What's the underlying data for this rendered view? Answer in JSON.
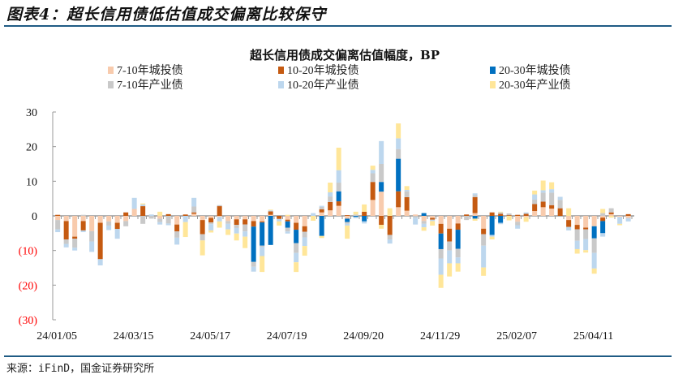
{
  "figure_title": "图表4：超长信用债低估值成交偏离比较保守",
  "source": "来源：iFinD，国金证券研究所",
  "chart_data": {
    "type": "bar",
    "stacked": true,
    "title": "超长信用债成交偏离估值幅度，BP",
    "xlabel": "",
    "ylabel": "",
    "ylim": [
      -30,
      30
    ],
    "yticks": [
      30,
      20,
      10,
      0,
      -10,
      -20,
      -30
    ],
    "ytick_labels": [
      "30",
      "20",
      "10",
      "0",
      "(10)",
      "(20)",
      "(30)"
    ],
    "negative_tick_color": "#ff0000",
    "grid": false,
    "legend_position": "top",
    "x_tick_labels": [
      {
        "index": 0,
        "label": "24/01/05"
      },
      {
        "index": 9,
        "label": "24/03/15"
      },
      {
        "index": 18,
        "label": "24/05/17"
      },
      {
        "index": 27,
        "label": "24/07/19"
      },
      {
        "index": 36,
        "label": "24/09/20"
      },
      {
        "index": 45,
        "label": "24/11/29"
      },
      {
        "index": 54,
        "label": "25/02/07"
      },
      {
        "index": 63,
        "label": "25/04/11"
      }
    ],
    "series": [
      {
        "name": "7-10年城投债",
        "color": "#f8cbad"
      },
      {
        "name": "10-20年城投债",
        "color": "#c55a11"
      },
      {
        "name": "20-30年城投债",
        "color": "#0070c0"
      },
      {
        "name": "7-10年产业债",
        "color": "#c9c9c9"
      },
      {
        "name": "10-20年产业债",
        "color": "#bdd7ee"
      },
      {
        "name": "20-30年产业债",
        "color": "#ffe699"
      }
    ],
    "values_by_week_note": "each row = one week, columns in series order",
    "values_by_week": [
      [
        -1.2,
        0.3,
        0,
        -2.7,
        -0.8,
        0
      ],
      [
        -1.5,
        -5.3,
        0,
        -1.3,
        -1,
        0
      ],
      [
        -6,
        -0.6,
        0,
        -2.6,
        -0.8,
        0
      ],
      [
        -1.5,
        -2.7,
        0,
        0.3,
        -0.5,
        0
      ],
      [
        -4.4,
        0,
        0,
        -3,
        -3,
        0
      ],
      [
        -2,
        -10.5,
        0,
        0,
        -1.8,
        0
      ],
      [
        -1.6,
        0,
        0,
        -1.2,
        -1.3,
        0
      ],
      [
        -2,
        -1.8,
        0,
        0,
        -2.8,
        0
      ],
      [
        -1.5,
        1,
        0,
        -1.5,
        0,
        0
      ],
      [
        2,
        0,
        0,
        0,
        3.2,
        0
      ],
      [
        0,
        2.8,
        0,
        -2.3,
        0.5,
        0.3
      ],
      [
        0,
        0,
        0,
        -0.8,
        0.4,
        0
      ],
      [
        -0.8,
        0,
        0,
        -1,
        -0.7,
        1.2
      ],
      [
        0,
        0.5,
        0,
        -2.2,
        -0.5,
        0
      ],
      [
        -2.5,
        -2,
        0,
        -1.8,
        -2,
        0
      ],
      [
        0,
        0.4,
        0,
        0,
        -1.8,
        -4.3
      ],
      [
        0.6,
        0.4,
        0,
        1.7,
        2.5,
        0
      ],
      [
        -1.2,
        -4.1,
        0,
        -1.8,
        0,
        -4.3
      ],
      [
        -0.6,
        -1.3,
        0,
        -0.5,
        -1.8,
        -0.6
      ],
      [
        -0.3,
        2.8,
        0,
        0.3,
        -1.3,
        -1.8
      ],
      [
        -1.5,
        0,
        0,
        -0.8,
        -1.6,
        -1.6
      ],
      [
        -1,
        -1.6,
        0,
        -0.9,
        -1.6,
        -2
      ],
      [
        -1,
        -1.5,
        0,
        -2,
        -1.5,
        -3.3
      ],
      [
        -1.5,
        -1.6,
        -10.2,
        -1.4,
        -1.4,
        0
      ],
      [
        -1.6,
        -0.3,
        -6.7,
        -0.3,
        -2.7,
        -4.6
      ],
      [
        0.3,
        1,
        -8.4,
        0,
        0.3,
        0.2
      ],
      [
        0,
        -0.9,
        0,
        0,
        -0.7,
        -1.2
      ],
      [
        -1.1,
        -0.5,
        -1.8,
        -1.1,
        -0.6,
        0.3
      ],
      [
        -2,
        -2,
        -3.9,
        -2.8,
        -2.7,
        -2.8
      ],
      [
        -3,
        -1.6,
        0,
        -1.6,
        -2.5,
        -2.8
      ],
      [
        0,
        0,
        0,
        0,
        0.8,
        -1.4
      ],
      [
        1,
        0.9,
        -5.8,
        0.7,
        0.3,
        -0.6
      ],
      [
        1.6,
        2.4,
        0,
        1.6,
        1.2,
        2.8
      ],
      [
        2.9,
        1.3,
        2.9,
        2.5,
        3.6,
        6.5
      ],
      [
        -0.8,
        0.2,
        -1,
        -0.5,
        -0.5,
        -3.8
      ],
      [
        0,
        0,
        -0.3,
        0.4,
        -0.4,
        0.8
      ],
      [
        0,
        1.2,
        -1.6,
        0,
        -0.6,
        2.1
      ],
      [
        4.6,
        5.2,
        0,
        2.5,
        1,
        1.2
      ],
      [
        7,
        -2.6,
        2.8,
        5.2,
        6.6,
        -1.1
      ],
      [
        0,
        -5.5,
        0,
        -1.3,
        -1.2,
        2.2
      ],
      [
        2.5,
        4.6,
        9.4,
        2.8,
        3.1,
        4.3
      ],
      [
        1.5,
        3.9,
        0,
        1.7,
        0.4,
        1.1
      ],
      [
        0.4,
        0,
        0,
        -0.5,
        -2,
        0
      ],
      [
        -1.5,
        0,
        0.8,
        -0.8,
        -1,
        -1
      ],
      [
        -0.6,
        -0.5,
        0,
        0,
        -0.4,
        -1.3
      ],
      [
        -2.3,
        -2.8,
        -4.5,
        -2.7,
        -4.7,
        -3.8
      ],
      [
        -3.7,
        -3.7,
        0,
        -2.6,
        -3.7,
        -3.8
      ],
      [
        -2.2,
        -1.8,
        -5.5,
        -2.5,
        -1.7,
        -2.4
      ],
      [
        0,
        0.4,
        0,
        -1.2,
        0,
        0
      ],
      [
        0.8,
        4.6,
        -0.8,
        0.6,
        0.5,
        -0.6
      ],
      [
        -3.7,
        -1.6,
        0,
        -3.3,
        -6.3,
        -2.4
      ],
      [
        0,
        1,
        -5.5,
        0,
        -0.5,
        -0.8
      ],
      [
        0,
        0.6,
        -2,
        0.4,
        -0.4,
        0.2
      ],
      [
        0,
        0.2,
        0,
        0.5,
        0,
        -1.3
      ],
      [
        -1.7,
        0.3,
        0,
        -1,
        -1,
        0
      ],
      [
        -0.4,
        0.6,
        0,
        0,
        0.4,
        -1.3
      ],
      [
        1.4,
        2,
        0,
        1.3,
        1.5,
        1.1
      ],
      [
        2.5,
        1.6,
        0,
        2.6,
        0.7,
        2.8
      ],
      [
        2.1,
        1,
        0,
        3.6,
        1,
        2
      ],
      [
        0,
        2.2,
        0,
        2.4,
        0.9,
        0
      ],
      [
        -1.2,
        -2,
        0,
        0,
        -1,
        2.2
      ],
      [
        -2.6,
        -1.3,
        0,
        -3.3,
        -2.4,
        -1.3
      ],
      [
        -3.4,
        -0.5,
        0,
        -2.8,
        -3.2,
        -0.7
      ],
      [
        -3,
        0,
        -3.5,
        -4.2,
        -4.5,
        -1.5
      ],
      [
        -0.5,
        -1,
        -3.5,
        0.8,
        -1,
        1.2
      ],
      [
        0.5,
        0.5,
        0,
        1.2,
        0,
        -0.5
      ],
      [
        -0.3,
        0,
        0,
        0,
        -2,
        -0.4
      ],
      [
        -0.6,
        0.5,
        0,
        0,
        -1,
        0
      ]
    ]
  }
}
